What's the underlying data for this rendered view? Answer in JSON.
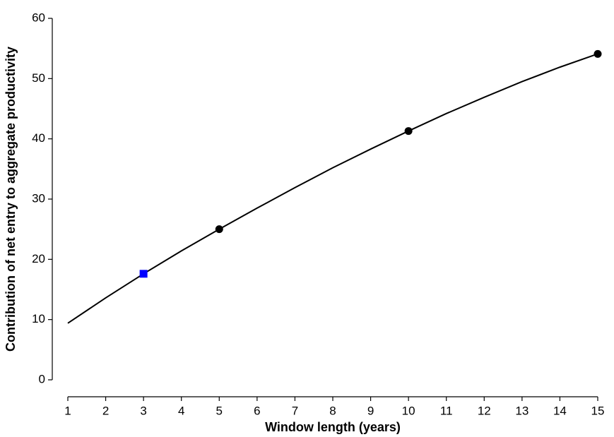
{
  "chart_data": {
    "type": "line",
    "xlabel": "Window length (years)",
    "ylabel": "Contribution of net entry to aggregate productivity",
    "x": [
      1,
      2,
      3,
      4,
      5,
      6,
      7,
      8,
      9,
      10,
      11,
      12,
      13,
      14,
      15
    ],
    "series": [
      {
        "color": "#000000",
        "marker": "none",
        "values": [
          9.4,
          13.6,
          17.6,
          21.4,
          25,
          28.5,
          31.9,
          35.2,
          38.3,
          41.3,
          44.2,
          46.9,
          49.5,
          51.9,
          54.1
        ]
      },
      {
        "color": "#000000",
        "marker": "circle",
        "x": [
          5,
          10,
          15
        ],
        "values": [
          25,
          41.3,
          54.1
        ]
      },
      {
        "color": "#0000ff",
        "marker": "square",
        "x": [
          3
        ],
        "values": [
          17.6
        ]
      }
    ],
    "xlim": [
      1,
      15
    ],
    "xticks": [
      1,
      2,
      3,
      4,
      5,
      6,
      7,
      8,
      9,
      10,
      11,
      12,
      13,
      14,
      15
    ],
    "ylim": [
      0,
      60
    ],
    "yticks": [
      0,
      10,
      20,
      30,
      40,
      50,
      60
    ],
    "grid": false
  }
}
